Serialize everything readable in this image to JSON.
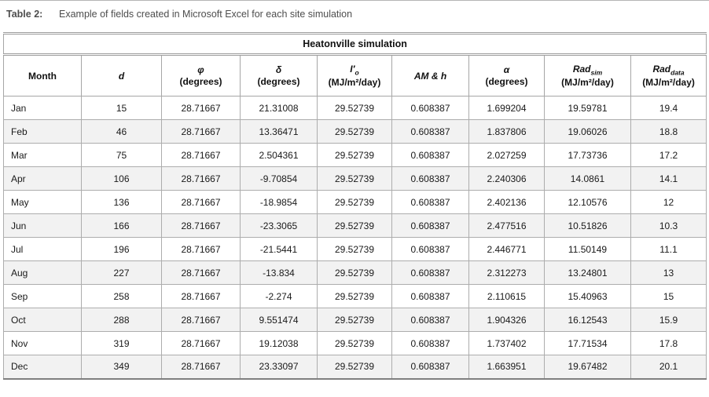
{
  "document": {
    "label": "Table 2:",
    "caption": "Example of fields created in Microsoft Excel for each site simulation"
  },
  "table": {
    "title": "Heatonville simulation",
    "columns": [
      {
        "id": "month",
        "symbol": "Month",
        "italic": false,
        "sub": "",
        "unit": ""
      },
      {
        "id": "d",
        "symbol": "d",
        "italic": true,
        "sub": "",
        "unit": ""
      },
      {
        "id": "phi",
        "symbol": "φ",
        "italic": true,
        "sub": "",
        "unit": "(degrees)"
      },
      {
        "id": "delta",
        "symbol": "δ",
        "italic": true,
        "sub": "",
        "unit": "(degrees)"
      },
      {
        "id": "i-prime-o",
        "symbol": "I′",
        "italic": true,
        "sub": "o",
        "unit": "(MJ/m²/day)"
      },
      {
        "id": "am-h",
        "symbol": "AM & h",
        "italic": true,
        "sub": "",
        "unit": ""
      },
      {
        "id": "alpha",
        "symbol": "α",
        "italic": true,
        "sub": "",
        "unit": "(degrees)"
      },
      {
        "id": "rad-sim",
        "symbol": "Rad",
        "italic": true,
        "sub": "sim",
        "unit": "(MJ/m²/day)"
      },
      {
        "id": "rad-data",
        "symbol": "Rad",
        "italic": true,
        "sub": "data",
        "unit": "(MJ/m²/day)"
      }
    ],
    "rows": [
      {
        "month": "Jan",
        "values": [
          "15",
          "28.71667",
          "21.31008",
          "29.52739",
          "0.608387",
          "1.699204",
          "19.59781",
          "19.4"
        ]
      },
      {
        "month": "Feb",
        "values": [
          "46",
          "28.71667",
          "13.36471",
          "29.52739",
          "0.608387",
          "1.837806",
          "19.06026",
          "18.8"
        ]
      },
      {
        "month": "Mar",
        "values": [
          "75",
          "28.71667",
          "2.504361",
          "29.52739",
          "0.608387",
          "2.027259",
          "17.73736",
          "17.2"
        ]
      },
      {
        "month": "Apr",
        "values": [
          "106",
          "28.71667",
          "-9.70854",
          "29.52739",
          "0.608387",
          "2.240306",
          "14.0861",
          "14.1"
        ]
      },
      {
        "month": "May",
        "values": [
          "136",
          "28.71667",
          "-18.9854",
          "29.52739",
          "0.608387",
          "2.402136",
          "12.10576",
          "12"
        ]
      },
      {
        "month": "Jun",
        "values": [
          "166",
          "28.71667",
          "-23.3065",
          "29.52739",
          "0.608387",
          "2.477516",
          "10.51826",
          "10.3"
        ]
      },
      {
        "month": "Jul",
        "values": [
          "196",
          "28.71667",
          "-21.5441",
          "29.52739",
          "0.608387",
          "2.446771",
          "11.50149",
          "11.1"
        ]
      },
      {
        "month": "Aug",
        "values": [
          "227",
          "28.71667",
          "-13.834",
          "29.52739",
          "0.608387",
          "2.312273",
          "13.24801",
          "13"
        ]
      },
      {
        "month": "Sep",
        "values": [
          "258",
          "28.71667",
          "-2.274",
          "29.52739",
          "0.608387",
          "2.110615",
          "15.40963",
          "15"
        ]
      },
      {
        "month": "Oct",
        "values": [
          "288",
          "28.71667",
          "9.551474",
          "29.52739",
          "0.608387",
          "1.904326",
          "16.12543",
          "15.9"
        ]
      },
      {
        "month": "Nov",
        "values": [
          "319",
          "28.71667",
          "19.12038",
          "29.52739",
          "0.608387",
          "1.737402",
          "17.71534",
          "17.8"
        ]
      },
      {
        "month": "Dec",
        "values": [
          "349",
          "28.71667",
          "23.33097",
          "29.52739",
          "0.608387",
          "1.663951",
          "19.67482",
          "20.1"
        ]
      }
    ]
  },
  "colors": {
    "caption_text": "#4d4d4d",
    "table_text": "#1a1a1a",
    "border": "#a6a6a6",
    "border_bottom": "#7f7f7f",
    "row_alt": "#f2f2f2"
  }
}
